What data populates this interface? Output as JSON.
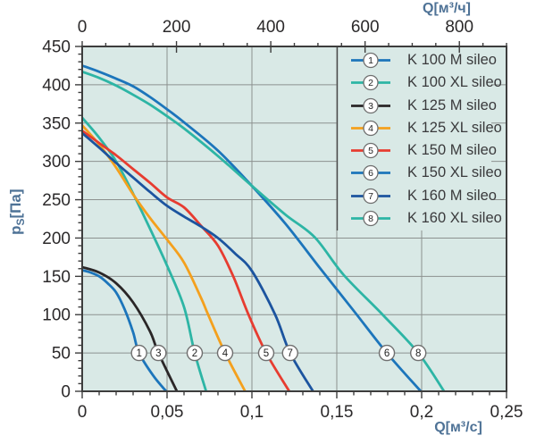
{
  "chart_data": {
    "type": "line",
    "description": "Fan performance curves: static pressure vs airflow",
    "plot_bg_color": "#d9e9e6",
    "grid_color": "#8c918f",
    "axis_color": "#3d3d3d",
    "tick_label_color": "#2b292a",
    "unit_label_color": "#4e7296",
    "x_axis_bottom": {
      "label": "Q[м³/с]",
      "max": 0.25,
      "major_step": 0.05,
      "minor_step": 0.01,
      "tick_values": [
        0,
        0.05,
        0.1,
        0.15,
        0.2,
        0.25
      ],
      "tick_labels": [
        "0",
        "0,05",
        "0,1",
        "0,15",
        "0,2",
        "0,25"
      ]
    },
    "x_axis_top": {
      "label": "Q[м³/ч]",
      "max_m3h": 900,
      "major_step_m3h": 200,
      "minor_step_m3h": 50,
      "tick_values_m3h": [
        0,
        200,
        400,
        600,
        800
      ],
      "tick_labels": [
        "0",
        "200",
        "400",
        "600",
        "800"
      ]
    },
    "y_axis": {
      "label_p": "p",
      "label_sub": "S",
      "label_unit": "[Па]",
      "max": 450,
      "major_step": 50,
      "minor_step": 10,
      "tick_values": [
        0,
        50,
        100,
        150,
        200,
        250,
        300,
        350,
        400,
        450
      ],
      "tick_labels": [
        "0",
        "50",
        "100",
        "150",
        "200",
        "250",
        "300",
        "350",
        "400",
        "450"
      ]
    },
    "marker_y": 50,
    "series": [
      {
        "num": "1",
        "name": "K 100 M sileo",
        "color": "#1c75bb",
        "marker_x": 0.0335,
        "points": [
          [
            0,
            158
          ],
          [
            0.005,
            155
          ],
          [
            0.01,
            150
          ],
          [
            0.015,
            141
          ],
          [
            0.02,
            129
          ],
          [
            0.025,
            107
          ],
          [
            0.03,
            77
          ],
          [
            0.0335,
            50
          ],
          [
            0.042,
            20
          ],
          [
            0.0495,
            0
          ]
        ]
      },
      {
        "num": "2",
        "name": "K 100 XL sileo",
        "color": "#2db5a5",
        "marker_x": 0.0663,
        "points": [
          [
            0,
            357
          ],
          [
            0.01,
            331
          ],
          [
            0.02,
            300
          ],
          [
            0.03,
            258
          ],
          [
            0.04,
            212
          ],
          [
            0.05,
            164
          ],
          [
            0.06,
            110
          ],
          [
            0.0663,
            50
          ],
          [
            0.073,
            0
          ]
        ]
      },
      {
        "num": "3",
        "name": "K 125 M sileo",
        "color": "#2a2627",
        "marker_x": 0.0449,
        "points": [
          [
            0,
            162
          ],
          [
            0.01,
            155
          ],
          [
            0.02,
            141
          ],
          [
            0.03,
            116
          ],
          [
            0.04,
            78
          ],
          [
            0.0449,
            50
          ],
          [
            0.0558,
            0
          ]
        ]
      },
      {
        "num": "4",
        "name": "K 125 XL sileo",
        "color": "#f4a01d",
        "marker_x": 0.0842,
        "points": [
          [
            0,
            347
          ],
          [
            0.01,
            322
          ],
          [
            0.02,
            292
          ],
          [
            0.03,
            257
          ],
          [
            0.04,
            226
          ],
          [
            0.05,
            198
          ],
          [
            0.06,
            168
          ],
          [
            0.07,
            122
          ],
          [
            0.0742,
            100
          ],
          [
            0.0842,
            50
          ],
          [
            0.096,
            0
          ]
        ]
      },
      {
        "num": "5",
        "name": "K 150 M sileo",
        "color": "#e73c30",
        "marker_x": 0.1084,
        "points": [
          [
            0,
            340
          ],
          [
            0.01,
            324
          ],
          [
            0.02,
            308
          ],
          [
            0.03,
            290
          ],
          [
            0.04,
            272
          ],
          [
            0.05,
            253
          ],
          [
            0.06,
            240
          ],
          [
            0.07,
            216
          ],
          [
            0.08,
            190
          ],
          [
            0.089,
            150
          ],
          [
            0.098,
            100
          ],
          [
            0.1084,
            50
          ],
          [
            0.122,
            0
          ]
        ]
      },
      {
        "num": "6",
        "name": "K 150 XL sileo",
        "color": "#1c75bb",
        "marker_x": 0.1795,
        "points": [
          [
            0,
            425
          ],
          [
            0.01,
            417
          ],
          [
            0.02,
            408
          ],
          [
            0.03,
            398
          ],
          [
            0.04,
            384
          ],
          [
            0.05,
            368
          ],
          [
            0.06,
            351
          ],
          [
            0.08,
            314
          ],
          [
            0.1,
            268
          ],
          [
            0.12,
            218
          ],
          [
            0.14,
            161
          ],
          [
            0.16,
            105
          ],
          [
            0.1795,
            50
          ],
          [
            0.1995,
            0
          ]
        ]
      },
      {
        "num": "7",
        "name": "K 160 M sileo",
        "color": "#1c549f",
        "marker_x": 0.1225,
        "points": [
          [
            0,
            337
          ],
          [
            0.01,
            318
          ],
          [
            0.02,
            298
          ],
          [
            0.03,
            279
          ],
          [
            0.04,
            260
          ],
          [
            0.05,
            242
          ],
          [
            0.06,
            228
          ],
          [
            0.07,
            215
          ],
          [
            0.08,
            200
          ],
          [
            0.09,
            180
          ],
          [
            0.1,
            157
          ],
          [
            0.1137,
            100
          ],
          [
            0.1225,
            50
          ],
          [
            0.136,
            0
          ]
        ]
      },
      {
        "num": "8",
        "name": "K 160 XL sileo",
        "color": "#2db5a5",
        "marker_x": 0.198,
        "points": [
          [
            0,
            417
          ],
          [
            0.01,
            409
          ],
          [
            0.02,
            399
          ],
          [
            0.03,
            387
          ],
          [
            0.04,
            374
          ],
          [
            0.05,
            359
          ],
          [
            0.06,
            343
          ],
          [
            0.08,
            307
          ],
          [
            0.1,
            268
          ],
          [
            0.12,
            230
          ],
          [
            0.137,
            201
          ],
          [
            0.154,
            152
          ],
          [
            0.177,
            100
          ],
          [
            0.198,
            50
          ],
          [
            0.2132,
            0
          ]
        ]
      }
    ],
    "legend": {
      "bg_color": "#d9e9e6",
      "border_color": "#4a4a4a",
      "marker_circle_fill": "#ffffff",
      "marker_circle_stroke": "#6f6f6f"
    }
  }
}
